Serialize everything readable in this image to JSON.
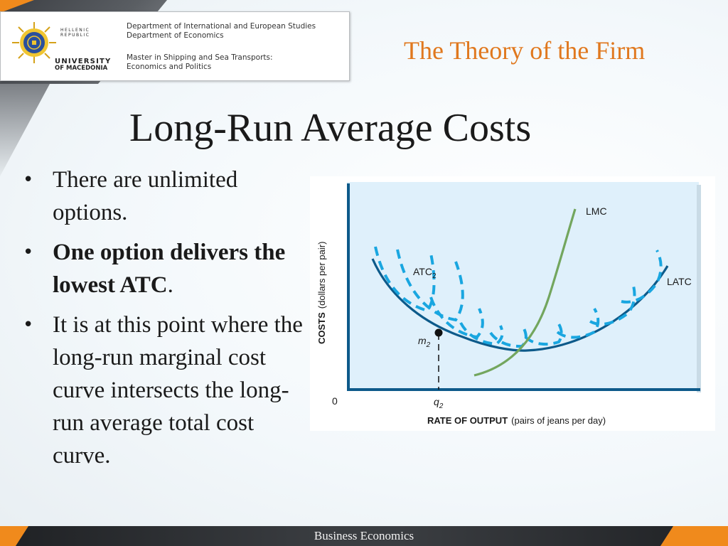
{
  "header": {
    "logo": {
      "republic_line1": "HELLENIC",
      "republic_line2": "REPUBLIC",
      "university_line1": "UNIVERSITY",
      "university_line2": "OF MACEDONIA"
    },
    "dept_line1": "Department of International and European Studies",
    "dept_line2": "Department of Economics",
    "program_line1": "Master in Shipping and Sea Transports:",
    "program_line2": "Economics and Politics"
  },
  "subtitle": "The Theory of the Firm",
  "title": "Long-Run Average Costs",
  "bullets": [
    {
      "text": "There are unlimited options.",
      "bold": false
    },
    {
      "text_bold": "One option delivers the lowest ATC",
      "text_after": "."
    },
    {
      "text": "It is at this point where the long-run marginal cost curve intersects the long-run average total cost curve.",
      "bold": false
    }
  ],
  "footer": "Business Economics",
  "colors": {
    "accent_orange": "#e0781e",
    "latc_curve": "#0d5a8a",
    "atc_dashed": "#19a6e0",
    "lmc_curve": "#73a65e",
    "plot_bg": "#dff0fb"
  },
  "chart_data": {
    "type": "line",
    "ylabel_bold": "COSTS",
    "ylabel_rest": "(dollars per pair)",
    "xlabel_bold": "RATE OF OUTPUT",
    "xlabel_rest": "(pairs of jeans per day)",
    "origin_label": "0",
    "point_label": "m",
    "point_label_sub": "2",
    "x_tick_label": "q",
    "x_tick_label_sub": "2",
    "series": [
      {
        "name": "LATC",
        "style": "solid"
      },
      {
        "name": "LMC",
        "style": "solid"
      },
      {
        "name": "ATC",
        "name_sub": "2",
        "style": "dashed"
      }
    ]
  }
}
